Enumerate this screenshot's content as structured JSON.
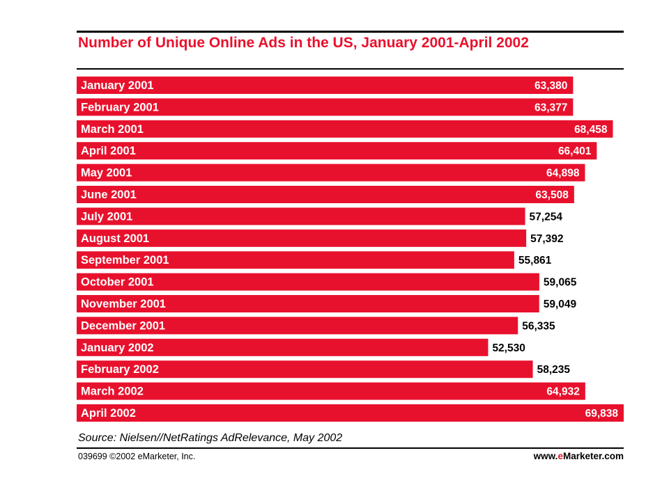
{
  "chart_data": {
    "type": "bar",
    "orientation": "horizontal",
    "title": "Number of Unique Online Ads in the US, January 2001-April 2002",
    "categories": [
      "January 2001",
      "February 2001",
      "March 2001",
      "April 2001",
      "May 2001",
      "June 2001",
      "July 2001",
      "August 2001",
      "September 2001",
      "October 2001",
      "November 2001",
      "December 2001",
      "January 2002",
      "February 2002",
      "March 2002",
      "April 2002"
    ],
    "values": [
      63380,
      63377,
      68458,
      66401,
      64898,
      63508,
      57254,
      57392,
      55861,
      59065,
      59049,
      56335,
      52530,
      58235,
      64932,
      69838
    ],
    "value_labels": [
      "63,380",
      "63,377",
      "68,458",
      "66,401",
      "64,898",
      "63,508",
      "57,254",
      "57,392",
      "55,861",
      "59,065",
      "59,049",
      "56,335",
      "52,530",
      "58,235",
      "64,932",
      "69,838"
    ],
    "grid": false,
    "legend": "none"
  },
  "colors": {
    "bar": "#e8112d",
    "title": "#e8112d",
    "accent": "#e8112d"
  },
  "source": "Source: Nielsen//NetRatings AdRelevance, May 2002",
  "footer": {
    "copyright": "039699 ©2002 eMarketer, Inc.",
    "site_prefix": "www.",
    "site_brand": "e",
    "site_suffix": "Marketer.com"
  }
}
